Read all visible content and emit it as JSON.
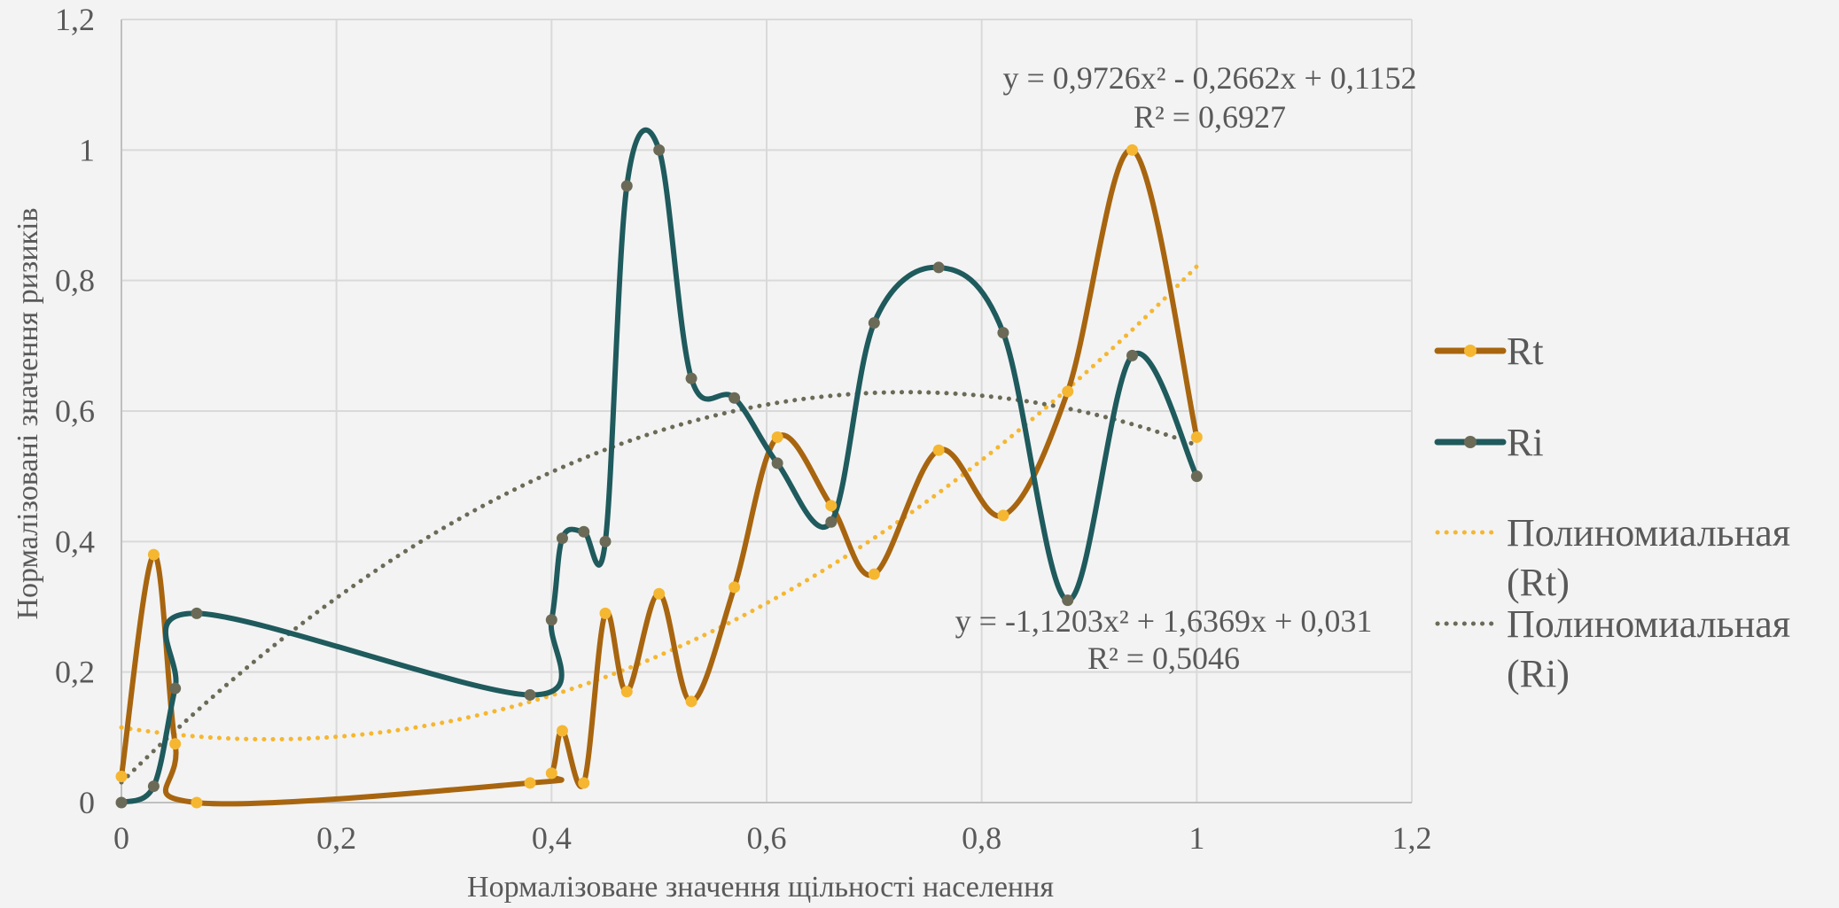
{
  "chart_data": {
    "type": "scatter",
    "style": "smoothed lines with markers and polynomial (order 2) trendlines",
    "xlabel": "Нормалізоване значення щільності населення",
    "ylabel": "Нормалізовані значення ризиків",
    "xlim": [
      0,
      1.2
    ],
    "ylim": [
      0,
      1.2
    ],
    "x_ticks": [
      0,
      0.2,
      0.4,
      0.6,
      0.8,
      1,
      1.2
    ],
    "x_tick_labels": [
      "0",
      "0,2",
      "0,4",
      "0,6",
      "0,8",
      "1",
      "1,2"
    ],
    "y_ticks": [
      0,
      0.2,
      0.4,
      0.6,
      0.8,
      1,
      1.2
    ],
    "y_tick_labels": [
      "0",
      "0,2",
      "0,4",
      "0,6",
      "0,8",
      "1",
      "1,2"
    ],
    "grid": true,
    "legend_position": "right",
    "series": [
      {
        "name": "Rt",
        "color": "#a8650f",
        "marker_color": "#f5b731",
        "x": [
          0,
          0.03,
          0.05,
          0.07,
          0.38,
          0.4,
          0.41,
          0.43,
          0.45,
          0.47,
          0.5,
          0.53,
          0.57,
          0.61,
          0.66,
          0.7,
          0.76,
          0.82,
          0.88,
          0.94,
          1
        ],
        "y": [
          0.04,
          0.38,
          0.09,
          0,
          0.03,
          0.045,
          0.11,
          0.03,
          0.29,
          0.17,
          0.32,
          0.155,
          0.33,
          0.56,
          0.455,
          0.35,
          0.54,
          0.44,
          0.63,
          1,
          0.56
        ]
      },
      {
        "name": "Ri",
        "color": "#1f5a5d",
        "marker_color": "#6b6a57",
        "x": [
          0,
          0.03,
          0.05,
          0.07,
          0.38,
          0.4,
          0.41,
          0.43,
          0.45,
          0.47,
          0.5,
          0.53,
          0.57,
          0.61,
          0.66,
          0.7,
          0.76,
          0.82,
          0.88,
          0.94,
          1
        ],
        "y": [
          0,
          0.025,
          0.175,
          0.29,
          0.165,
          0.28,
          0.405,
          0.415,
          0.4,
          0.945,
          1,
          0.65,
          0.62,
          0.52,
          0.43,
          0.735,
          0.82,
          0.72,
          0.31,
          0.685,
          0.5
        ]
      }
    ],
    "trendlines": [
      {
        "name": "Полиномиальная (Rt)",
        "legend_lines": [
          "Полиномиальная",
          "(Rt)"
        ],
        "series": "Rt",
        "color": "#f5b731",
        "coefficients": [
          0.9726,
          -0.2662,
          0.1152
        ],
        "equation": "y = 0,9726x² - 0,2662x + 0,1152",
        "r2": "R² = 0,6927"
      },
      {
        "name": "Полиномиальная (Ri)",
        "legend_lines": [
          "Полиномиальная",
          "(Ri)"
        ],
        "series": "Ri",
        "color": "#6b6a57",
        "coefficients": [
          -1.1203,
          1.6369,
          0.031
        ],
        "equation": "y = -1,1203x² + 1,6369x + 0,031",
        "r2": "R² = 0,5046"
      }
    ]
  }
}
